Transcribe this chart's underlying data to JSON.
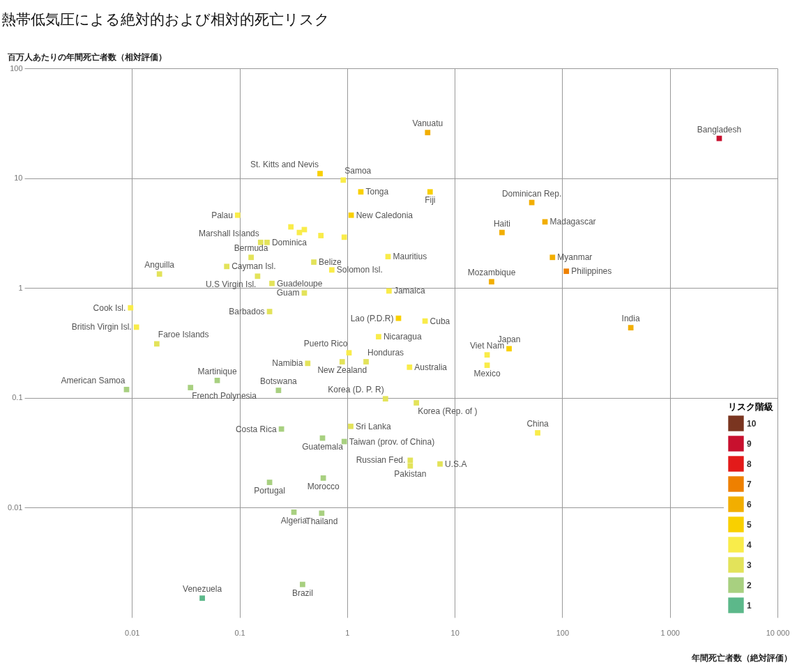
{
  "chart_data": {
    "type": "scatter",
    "title": "熱帯低気圧による絶対的および相対的死亡リスク",
    "xlabel": "年間死亡者数（絶対評価）",
    "ylabel": "百万人あたりの年間死亡者数（相対評価）",
    "legend_title": "リスク階級",
    "legend": "bottom right",
    "marker": "square",
    "grid": true,
    "log": "xy",
    "xlim": [
      0.001,
      10000
    ],
    "ylim": [
      0.001,
      100
    ],
    "xticks": [
      0.01,
      0.1,
      1,
      10,
      100,
      {
        "value": 1000,
        "label": "1 000"
      },
      {
        "value": 10000,
        "label": "10 000"
      }
    ],
    "yticks": [
      0.01,
      0.1,
      1,
      10,
      100
    ],
    "series": [
      {
        "name": "10",
        "color": "#7a3520"
      },
      {
        "name": "9",
        "color": "#c8102e",
        "x": [
          2875
        ],
        "values": [
          23
        ]
      },
      {
        "name": "8",
        "color": "#e31a1a"
      },
      {
        "name": "7",
        "color": "#ee8000",
        "x": [
          109
        ],
        "values": [
          1.42
        ]
      },
      {
        "name": "6",
        "color": "#f2ae00",
        "x": [
          5.6,
          52,
          27.5,
          69,
          81,
          22,
          433
        ],
        "values": [
          26,
          6.0,
          3.2,
          4.0,
          1.9,
          1.14,
          0.435
        ]
      },
      {
        "name": "5",
        "color": "#f9d000",
        "x": [
          0.56,
          1.34,
          5.9,
          1.09,
          32,
          3.0
        ],
        "values": [
          11,
          7.5,
          7.5,
          4.6,
          0.28,
          0.53
        ]
      },
      {
        "name": "4",
        "color": "#f9ec4a",
        "x": [
          0.92,
          0.096,
          0.0097,
          0.011,
          2.4,
          2.45,
          5.3,
          1.96,
          1.04,
          3.8,
          20,
          20,
          59,
          0.3,
          0.36,
          0.4,
          0.57,
          0.94,
          0.72
        ],
        "values": [
          9.6,
          4.6,
          0.66,
          0.44,
          1.93,
          0.94,
          0.5,
          0.36,
          0.257,
          0.19,
          0.246,
          0.198,
          0.048,
          3.6,
          3.2,
          3.4,
          3.0,
          2.9,
          1.46
        ]
      },
      {
        "name": "3",
        "color": "#e3e35a",
        "x": [
          0.157,
          0.18,
          0.128,
          0.076,
          0.018,
          0.147,
          0.2,
          0.4,
          0.49,
          0.19,
          0.017,
          0.43,
          1.5,
          0.9,
          2.27,
          1.08,
          3.86,
          3.86,
          7.3,
          4.4
        ],
        "values": [
          2.6,
          2.6,
          1.9,
          1.57,
          1.34,
          1.28,
          1.1,
          0.9,
          1.72,
          0.61,
          0.31,
          0.206,
          0.213,
          0.213,
          0.098,
          0.055,
          0.027,
          0.024,
          0.025,
          0.09
        ]
      },
      {
        "name": "2",
        "color": "#a8d080",
        "x": [
          0.94,
          0.59,
          0.245,
          0.6,
          0.19,
          0.32,
          0.58,
          0.385,
          0.0089,
          0.062,
          0.035,
          0.23
        ],
        "values": [
          0.04,
          0.043,
          0.052,
          0.0186,
          0.017,
          0.0091,
          0.0089,
          0.002,
          0.119,
          0.144,
          0.124,
          0.117
        ]
      },
      {
        "name": "1",
        "color": "#5cb88a",
        "x": [
          0.045
        ],
        "values": [
          0.0015
        ]
      }
    ],
    "annotations": [
      {
        "text": "Bangladesh",
        "x": 2875,
        "y": 23
      },
      {
        "text": "Philippines",
        "x": 109,
        "y": 1.42
      },
      {
        "text": "Vanuatu",
        "x": 5.6,
        "y": 26
      },
      {
        "text": "Dominican Rep.",
        "x": 52,
        "y": 6.0
      },
      {
        "text": "Haiti",
        "x": 27.5,
        "y": 3.2
      },
      {
        "text": "Madagascar",
        "x": 69,
        "y": 4.0
      },
      {
        "text": "Myanmar",
        "x": 81,
        "y": 1.9
      },
      {
        "text": "Mozambique",
        "x": 22,
        "y": 1.14
      },
      {
        "text": "India",
        "x": 433,
        "y": 0.435
      },
      {
        "text": "St. Kitts and Nevis",
        "x": 0.56,
        "y": 11
      },
      {
        "text": "Tonga",
        "x": 1.34,
        "y": 7.5
      },
      {
        "text": "Fiji",
        "x": 5.9,
        "y": 7.5
      },
      {
        "text": "New Caledonia",
        "x": 1.09,
        "y": 4.6
      },
      {
        "text": "Japan",
        "x": 32,
        "y": 0.28
      },
      {
        "text": "Samoa",
        "x": 0.92,
        "y": 9.6
      },
      {
        "text": "Palau",
        "x": 0.096,
        "y": 4.6
      },
      {
        "text": "Marshall Islands",
        "x": 0.157,
        "y": 2.6
      },
      {
        "text": "Dominica",
        "x": 0.18,
        "y": 2.6
      },
      {
        "text": "Bermuda",
        "x": 0.128,
        "y": 1.9
      },
      {
        "text": "Cayman Isl.",
        "x": 0.076,
        "y": 1.57
      },
      {
        "text": "Anguilla",
        "x": 0.018,
        "y": 1.34
      },
      {
        "text": "U.S Virgin Isl.",
        "x": 0.147,
        "y": 1.28
      },
      {
        "text": "Guadeloupe",
        "x": 0.2,
        "y": 1.1
      },
      {
        "text": "Guam",
        "x": 0.4,
        "y": 0.9
      },
      {
        "text": "Belize",
        "x": 0.49,
        "y": 1.72
      },
      {
        "text": "Solomon Isl.",
        "x": 0.72,
        "y": 1.46
      },
      {
        "text": "Mauritius",
        "x": 2.4,
        "y": 1.93
      },
      {
        "text": "Jamaica",
        "x": 2.45,
        "y": 0.94
      },
      {
        "text": "Lao (P.D.R)",
        "x": 3.0,
        "y": 0.53
      },
      {
        "text": "Cuba",
        "x": 5.3,
        "y": 0.5
      },
      {
        "text": "Nicaragua",
        "x": 1.96,
        "y": 0.36
      },
      {
        "text": "Puerto Rico",
        "x": 1.04,
        "y": 0.257
      },
      {
        "text": "Honduras",
        "x": 1.5,
        "y": 0.213
      },
      {
        "text": "New Zealand",
        "x": 0.9,
        "y": 0.213
      },
      {
        "text": "Namibia",
        "x": 0.43,
        "y": 0.206
      },
      {
        "text": "Australia",
        "x": 3.8,
        "y": 0.19
      },
      {
        "text": "Viet Nam",
        "x": 20,
        "y": 0.246
      },
      {
        "text": "Mexico",
        "x": 20,
        "y": 0.198
      },
      {
        "text": "Korea (D. P. R)",
        "x": 2.27,
        "y": 0.098
      },
      {
        "text": "Korea (Rep. of )",
        "x": 4.4,
        "y": 0.09
      },
      {
        "text": "China",
        "x": 59,
        "y": 0.048
      },
      {
        "text": "Sri Lanka",
        "x": 1.08,
        "y": 0.055
      },
      {
        "text": "Taiwan (prov. of China)",
        "x": 0.94,
        "y": 0.04
      },
      {
        "text": "Russian Fed.",
        "x": 3.86,
        "y": 0.027
      },
      {
        "text": "Pakistan",
        "x": 3.86,
        "y": 0.024
      },
      {
        "text": "U.S.A",
        "x": 7.3,
        "y": 0.025
      },
      {
        "text": "Guatemala",
        "x": 0.59,
        "y": 0.043
      },
      {
        "text": "Costa Rica",
        "x": 0.245,
        "y": 0.052
      },
      {
        "text": "Morocco",
        "x": 0.6,
        "y": 0.0186
      },
      {
        "text": "Portugal",
        "x": 0.19,
        "y": 0.017
      },
      {
        "text": "Algeria",
        "x": 0.32,
        "y": 0.0091
      },
      {
        "text": "Thailand",
        "x": 0.58,
        "y": 0.0089
      },
      {
        "text": "Brazil",
        "x": 0.385,
        "y": 0.002
      },
      {
        "text": "Venezuela",
        "x": 0.045,
        "y": 0.0015
      },
      {
        "text": "American Samoa",
        "x": 0.0089,
        "y": 0.119
      },
      {
        "text": "Cook Isl.",
        "x": 0.0097,
        "y": 0.66
      },
      {
        "text": "British Virgin Isl.",
        "x": 0.011,
        "y": 0.44
      },
      {
        "text": "Faroe Islands",
        "x": 0.017,
        "y": 0.31
      },
      {
        "text": "Martinique",
        "x": 0.062,
        "y": 0.144
      },
      {
        "text": "French Polynesia",
        "x": 0.035,
        "y": 0.124
      },
      {
        "text": "Botswana",
        "x": 0.23,
        "y": 0.117
      },
      {
        "text": "Barbados",
        "x": 0.19,
        "y": 0.61
      }
    ]
  }
}
